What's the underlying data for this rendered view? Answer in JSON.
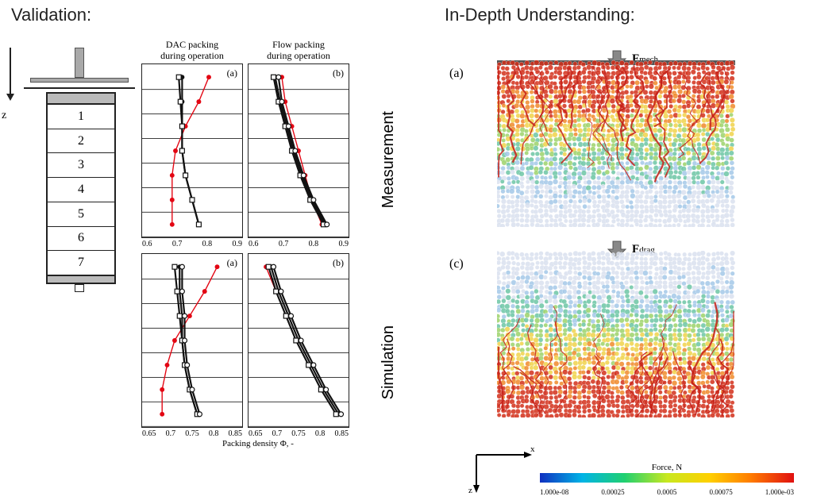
{
  "left_title": "Validation:",
  "right_title": "In-Depth Understanding:",
  "side_label_top": "Measurement",
  "side_label_bottom": "Simulation",
  "column": {
    "segments": [
      "1",
      "2",
      "3",
      "4",
      "5",
      "6",
      "7"
    ],
    "z_label": "z"
  },
  "headers": {
    "left": "DAC packing\nduring operation",
    "right": "Flow packing\nduring operation"
  },
  "xlabel": "Packing density Φ, -",
  "top_row": {
    "xlim": [
      0.6,
      0.9
    ],
    "xticks": [
      "0.6",
      "0.7",
      "0.8",
      "0.9"
    ],
    "panels": {
      "a": {
        "tag": "(a)",
        "series": [
          {
            "color": "#e30613",
            "marker": "circle",
            "y": [
              1,
              2,
              3,
              4,
              5,
              6,
              7
            ],
            "x": [
              0.8,
              0.77,
              0.73,
              0.7,
              0.69,
              0.69,
              0.69
            ]
          },
          {
            "color": "#111111",
            "marker": "circle",
            "y": [
              1,
              2,
              3,
              4,
              5,
              6,
              7
            ],
            "x": [
              0.72,
              0.72,
              0.72,
              0.72,
              0.73,
              0.75,
              0.77
            ]
          },
          {
            "color": "#111111",
            "marker": "square-open",
            "y": [
              1,
              2,
              3,
              4,
              5,
              6,
              7
            ],
            "x": [
              0.71,
              0.715,
              0.72,
              0.72,
              0.73,
              0.75,
              0.77
            ]
          }
        ]
      },
      "b": {
        "tag": "(b)",
        "series": [
          {
            "color": "#e30613",
            "marker": "circle",
            "y": [
              1,
              2,
              3,
              4,
              5,
              6,
              7
            ],
            "x": [
              0.7,
              0.71,
              0.73,
              0.75,
              0.77,
              0.79,
              0.82
            ]
          },
          {
            "color": "#111111",
            "marker": "circle",
            "y": [
              1,
              2,
              3,
              4,
              5,
              6,
              7
            ],
            "x": [
              0.68,
              0.695,
              0.715,
              0.735,
              0.76,
              0.79,
              0.83
            ]
          },
          {
            "color": "#111111",
            "marker": "square-open",
            "y": [
              1,
              2,
              3,
              4,
              5,
              6,
              7
            ],
            "x": [
              0.675,
              0.69,
              0.71,
              0.73,
              0.755,
              0.785,
              0.825
            ]
          },
          {
            "color": "#111111",
            "marker": "circle-open",
            "y": [
              1,
              2,
              3,
              4,
              5,
              6,
              7
            ],
            "x": [
              0.69,
              0.7,
              0.72,
              0.74,
              0.765,
              0.795,
              0.835
            ]
          }
        ]
      }
    }
  },
  "bottom_row": {
    "xlim": [
      0.65,
      0.85
    ],
    "xticks": [
      "0.65",
      "0.7",
      "0.75",
      "0.8",
      "0.85"
    ],
    "panels": {
      "a": {
        "tag": "(a)",
        "series": [
          {
            "color": "#e30613",
            "marker": "circle",
            "y": [
              1,
              2,
              3,
              4,
              5,
              6,
              7
            ],
            "x": [
              0.8,
              0.775,
              0.745,
              0.715,
              0.7,
              0.69,
              0.69
            ]
          },
          {
            "color": "#111111",
            "marker": "circle",
            "y": [
              1,
              2,
              3,
              4,
              5,
              6,
              7
            ],
            "x": [
              0.725,
              0.725,
              0.73,
              0.73,
              0.735,
              0.745,
              0.76
            ]
          },
          {
            "color": "#111111",
            "marker": "square-open",
            "y": [
              1,
              2,
              3,
              4,
              5,
              6,
              7
            ],
            "x": [
              0.715,
              0.72,
              0.725,
              0.73,
              0.735,
              0.745,
              0.76
            ]
          },
          {
            "color": "#111111",
            "marker": "circle-open",
            "y": [
              1,
              2,
              3,
              4,
              5,
              6,
              7
            ],
            "x": [
              0.73,
              0.73,
              0.735,
              0.735,
              0.74,
              0.75,
              0.765
            ]
          }
        ]
      },
      "b": {
        "tag": "(b)",
        "series": [
          {
            "color": "#e30613",
            "marker": "circle",
            "y": [
              1,
              2,
              3,
              4,
              5,
              6,
              7
            ],
            "x": [
              0.685,
              0.705,
              0.725,
              0.745,
              0.77,
              0.795,
              0.825
            ]
          },
          {
            "color": "#111111",
            "marker": "circle",
            "y": [
              1,
              2,
              3,
              4,
              5,
              6,
              7
            ],
            "x": [
              0.695,
              0.71,
              0.73,
              0.75,
              0.775,
              0.8,
              0.83
            ]
          },
          {
            "color": "#111111",
            "marker": "square-open",
            "y": [
              1,
              2,
              3,
              4,
              5,
              6,
              7
            ],
            "x": [
              0.69,
              0.705,
              0.725,
              0.745,
              0.77,
              0.795,
              0.825
            ]
          },
          {
            "color": "#111111",
            "marker": "circle-open",
            "y": [
              1,
              2,
              3,
              4,
              5,
              6,
              7
            ],
            "x": [
              0.7,
              0.715,
              0.735,
              0.755,
              0.78,
              0.805,
              0.835
            ]
          }
        ]
      }
    }
  },
  "plot_style": {
    "grid_color": "#c0c0c0",
    "line_width": 1.6,
    "marker_size": 3.0,
    "red_line_width": 1.4,
    "black_line_width": 2.2,
    "n_hgrid": 7
  },
  "right": {
    "panels": {
      "a": {
        "tag": "(a)",
        "label": "F",
        "sub": "mech",
        "top_bar": true,
        "particle_colors": [
          "#d9e1ef",
          "#a3c8e8",
          "#6cc6a4",
          "#9cd26a",
          "#f0d24a",
          "#f08a2a",
          "#d22f1a"
        ],
        "force_chain_color": "#c52018",
        "mode": "top"
      },
      "c": {
        "tag": "(c)",
        "label": "F",
        "sub": "drag",
        "top_bar": false,
        "particle_colors": [
          "#d9e1ef",
          "#a3c8e8",
          "#6cc6a4",
          "#9cd26a",
          "#f0d24a",
          "#f08a2a",
          "#d22f1a"
        ],
        "force_chain_color": "#c52018",
        "mode": "bottom"
      }
    },
    "axes": {
      "x": "x",
      "z": "z"
    },
    "colorbar": {
      "title": "Force, N",
      "ticks": [
        "1.000e-08",
        "0.00025",
        "0.0005",
        "0.00075",
        "1.000e-03"
      ],
      "colors": [
        "#1030c0",
        "#00b4e6",
        "#20d070",
        "#c8e820",
        "#ffd000",
        "#ff7a00",
        "#e01010"
      ]
    }
  }
}
